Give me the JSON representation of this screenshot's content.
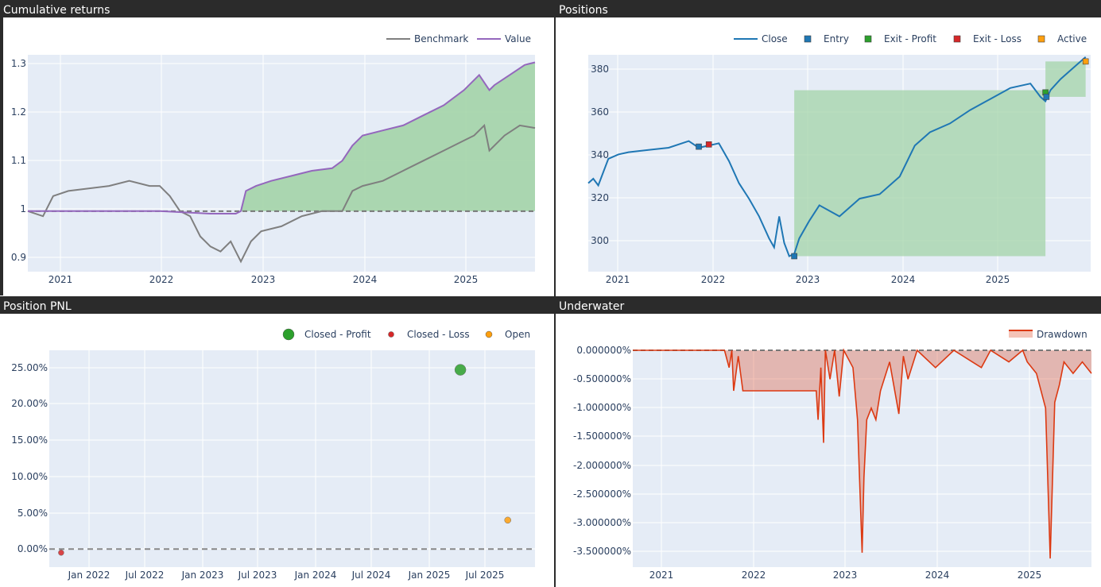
{
  "panels": {
    "cumulative": "Cumulative returns",
    "positions": "Positions",
    "pnl": "Position PNL",
    "underwater": "Underwater"
  },
  "colors": {
    "benchmark": "#7f7f7f",
    "value": "#9467bd",
    "close": "#1f77b4",
    "entry": "#1f77b4",
    "exit_profit": "#2ca02c",
    "exit_loss": "#d62728",
    "active": "#ff9f0e",
    "drawdown": "#dc3912",
    "plot_bg": "#e5ecf6",
    "profit_fill": "#a3d4a8"
  },
  "chart_data": [
    {
      "id": "cumulative",
      "type": "line",
      "legend": [
        "Benchmark",
        "Value"
      ],
      "x_ticks": [
        "2021",
        "2022",
        "2023",
        "2024",
        "2025"
      ],
      "y_ticks": [
        "0.9",
        "1",
        "1.1",
        "1.2",
        "1.3"
      ],
      "ylim": [
        0.88,
        1.31
      ],
      "xlim": [
        2020.7,
        2025.7
      ],
      "series": [
        {
          "name": "Benchmark",
          "x": [
            2020.7,
            2020.85,
            2020.95,
            2021.1,
            2021.3,
            2021.5,
            2021.7,
            2021.9,
            2022.0,
            2022.1,
            2022.2,
            2022.3,
            2022.4,
            2022.5,
            2022.6,
            2022.7,
            2022.8,
            2022.9,
            2023.0,
            2023.2,
            2023.4,
            2023.6,
            2023.8,
            2023.9,
            2024.0,
            2024.2,
            2024.4,
            2024.6,
            2024.8,
            2025.0,
            2025.1,
            2025.2,
            2025.25,
            2025.4,
            2025.55,
            2025.7
          ],
          "y": [
            1.0,
            0.99,
            1.03,
            1.04,
            1.045,
            1.05,
            1.06,
            1.05,
            1.05,
            1.03,
            1.0,
            0.99,
            0.95,
            0.93,
            0.92,
            0.94,
            0.9,
            0.94,
            0.96,
            0.97,
            0.99,
            1.0,
            1.0,
            1.04,
            1.05,
            1.06,
            1.08,
            1.1,
            1.12,
            1.14,
            1.15,
            1.17,
            1.12,
            1.15,
            1.17,
            1.165
          ]
        },
        {
          "name": "Value",
          "x": [
            2020.7,
            2021.5,
            2022.0,
            2022.5,
            2022.75,
            2022.8,
            2022.85,
            2022.95,
            2023.1,
            2023.3,
            2023.5,
            2023.7,
            2023.8,
            2023.9,
            2024.0,
            2024.2,
            2024.4,
            2024.6,
            2024.8,
            2025.0,
            2025.15,
            2025.25,
            2025.3,
            2025.45,
            2025.6,
            2025.7
          ],
          "y": [
            1.0,
            1.0,
            1.0,
            0.995,
            0.995,
            1.0,
            1.04,
            1.05,
            1.06,
            1.07,
            1.08,
            1.085,
            1.1,
            1.13,
            1.15,
            1.16,
            1.17,
            1.19,
            1.21,
            1.24,
            1.27,
            1.24,
            1.25,
            1.27,
            1.29,
            1.295
          ]
        }
      ]
    },
    {
      "id": "positions",
      "type": "line",
      "legend": [
        "Close",
        "Entry",
        "Exit - Profit",
        "Exit - Loss",
        "Active"
      ],
      "x_ticks": [
        "2021",
        "2022",
        "2023",
        "2024",
        "2025"
      ],
      "y_ticks": [
        "300",
        "320",
        "340",
        "360",
        "380"
      ],
      "ylim": [
        285,
        383
      ],
      "xlim": [
        2020.7,
        2025.7
      ],
      "close": {
        "x": [
          2020.7,
          2020.75,
          2020.8,
          2020.9,
          2021.0,
          2021.1,
          2021.3,
          2021.5,
          2021.7,
          2021.8,
          2021.9,
          2022.0,
          2022.1,
          2022.2,
          2022.3,
          2022.4,
          2022.5,
          2022.55,
          2022.6,
          2022.65,
          2022.7,
          2022.75,
          2022.8,
          2022.9,
          2023.0,
          2023.2,
          2023.4,
          2023.6,
          2023.8,
          2023.95,
          2024.1,
          2024.3,
          2024.5,
          2024.7,
          2024.9,
          2025.1,
          2025.2,
          2025.25,
          2025.3,
          2025.4,
          2025.55,
          2025.65
        ],
        "y": [
          325,
          327,
          324,
          336,
          338,
          339,
          340,
          341,
          344,
          341,
          342,
          343,
          335,
          325,
          318,
          310,
          300,
          296,
          310,
          298,
          292,
          293,
          300,
          308,
          315,
          310,
          318,
          320,
          328,
          342,
          348,
          352,
          358,
          363,
          368,
          370,
          364,
          362,
          367,
          372,
          378,
          382
        ]
      },
      "markers": [
        {
          "kind": "Entry",
          "x": 2021.8,
          "y": 341.5
        },
        {
          "kind": "Exit - Loss",
          "x": 2021.9,
          "y": 342.5
        },
        {
          "kind": "Entry",
          "x": 2022.75,
          "y": 292
        },
        {
          "kind": "Exit - Profit",
          "x": 2025.25,
          "y": 366
        },
        {
          "kind": "Entry",
          "x": 2025.26,
          "y": 364
        },
        {
          "kind": "Active",
          "x": 2025.65,
          "y": 380
        }
      ],
      "zones": [
        {
          "kind": "profit",
          "x0": 2022.75,
          "x1": 2025.25,
          "y0": 292,
          "y1": 367
        },
        {
          "kind": "active",
          "x0": 2025.25,
          "x1": 2025.65,
          "y0": 364,
          "y1": 380
        }
      ]
    },
    {
      "id": "pnl",
      "type": "scatter",
      "legend": [
        "Closed - Profit",
        "Closed - Loss",
        "Open"
      ],
      "x_ticks": [
        "Jan 2022",
        "Jul 2022",
        "Jan 2023",
        "Jul 2023",
        "Jan 2024",
        "Jul 2024",
        "Jan 2025",
        "Jul 2025"
      ],
      "y_ticks": [
        "0.00%",
        "5.00%",
        "10.00%",
        "15.00%",
        "20.00%",
        "25.00%"
      ],
      "ylim": [
        -2.5,
        27.5
      ],
      "xlim": [
        2021.8,
        2025.9
      ],
      "points": [
        {
          "kind": "Closed - Loss",
          "x": 2021.9,
          "y": -0.5
        },
        {
          "kind": "Closed - Profit",
          "x": 2025.27,
          "y": 24.8
        },
        {
          "kind": "Open",
          "x": 2025.67,
          "y": 4.0
        }
      ]
    },
    {
      "id": "underwater",
      "type": "area",
      "legend": [
        "Drawdown"
      ],
      "x_ticks": [
        "2021",
        "2022",
        "2023",
        "2024",
        "2025"
      ],
      "y_ticks": [
        "0.000000%",
        "-0.500000%",
        "-1.000000%",
        "-1.500000%",
        "-2.000000%",
        "-2.500000%",
        "-3.000000%",
        "-3.500000%"
      ],
      "ylim": [
        -3.75,
        0
      ],
      "xlim": [
        2020.7,
        2025.7
      ],
      "series": [
        {
          "name": "Drawdown",
          "x": [
            2020.7,
            2021.7,
            2021.75,
            2021.78,
            2021.8,
            2021.85,
            2021.9,
            2022.0,
            2022.3,
            2022.7,
            2022.72,
            2022.75,
            2022.78,
            2022.8,
            2022.85,
            2022.9,
            2022.95,
            2023.0,
            2023.1,
            2023.15,
            2023.2,
            2023.22,
            2023.25,
            2023.3,
            2023.35,
            2023.4,
            2023.5,
            2023.6,
            2023.65,
            2023.7,
            2023.8,
            2024.0,
            2024.2,
            2024.4,
            2024.5,
            2024.6,
            2024.8,
            2024.95,
            2025.0,
            2025.1,
            2025.2,
            2025.25,
            2025.3,
            2025.35,
            2025.4,
            2025.5,
            2025.6,
            2025.7
          ],
          "y": [
            0,
            0,
            -0.3,
            0,
            -0.7,
            -0.1,
            -0.7,
            -0.7,
            -0.7,
            -0.7,
            -1.2,
            -0.3,
            -1.6,
            0,
            -0.5,
            0,
            -0.8,
            0,
            -0.3,
            -1.2,
            -3.5,
            -2.2,
            -1.2,
            -1.0,
            -1.2,
            -0.7,
            -0.2,
            -1.1,
            -0.1,
            -0.5,
            0,
            -0.3,
            0,
            -0.2,
            -0.3,
            0,
            -0.2,
            0,
            -0.2,
            -0.4,
            -1.0,
            -3.6,
            -0.9,
            -0.6,
            -0.2,
            -0.4,
            -0.2,
            -0.4
          ]
        }
      ]
    }
  ]
}
